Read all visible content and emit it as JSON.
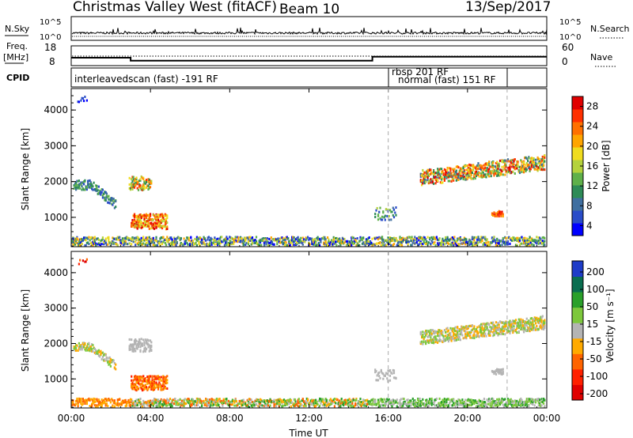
{
  "header": {
    "title": "Christmas Valley West (fitACF)",
    "beam": "Beam 10",
    "date": "13/Sep/2017"
  },
  "labels": {
    "nsky": "N.Sky",
    "nsearch": "N.Search",
    "freq": "Freq.",
    "mhz": "[MHz]",
    "nave": "Nave",
    "cpid": "CPID",
    "ylabel": "Slant Range [km]",
    "xlabel": "Time UT",
    "power_cbar": "Power [dB]",
    "velocity_cbar": "Velocity [m s⁻¹]"
  },
  "colors": {
    "power": [
      "#0000ff",
      "#2a4cc8",
      "#3f6fa0",
      "#2e8b57",
      "#5fb04a",
      "#b4d23c",
      "#f0dc1e",
      "#ffa500",
      "#ff7000",
      "#ff3000",
      "#e00000"
    ],
    "velocity": [
      "#1e3cc8",
      "#0a6e50",
      "#2aa02a",
      "#7dc83c",
      "#b4b4b4",
      "#ffaa00",
      "#ff6400",
      "#ff2000",
      "#e00000"
    ]
  },
  "chart_data": [
    {
      "type": "line",
      "name": "noise",
      "y_left_labels": [
        "10^5",
        "10^0"
      ],
      "y_right_labels": [
        "10^5",
        "10^0"
      ]
    },
    {
      "type": "line",
      "name": "frequency-nave",
      "y_left_ticks": [
        "18",
        "8"
      ],
      "y_right_ticks": [
        "60",
        "0"
      ],
      "x_hours": [
        0,
        3,
        3,
        15.2,
        15.2,
        24
      ],
      "freq_mhz": [
        12,
        12,
        10.5,
        10.5,
        12.5,
        12.5
      ]
    },
    {
      "type": "table",
      "name": "cpid",
      "segments": [
        {
          "start": 0,
          "end": 16,
          "text": "interleavedscan (fast) -191 RF"
        },
        {
          "start": 16,
          "end": 16,
          "text": "rbsp 201 RF"
        },
        {
          "start": 16,
          "end": 24,
          "text": "normal (fast) 151 RF"
        }
      ],
      "boundaries": [
        16,
        22
      ]
    },
    {
      "type": "heatmap",
      "name": "power",
      "x_ticks": [
        "00:00",
        "04:00",
        "08:00",
        "12:00",
        "16:00",
        "20:00",
        "00:00"
      ],
      "y_ticks": [
        1000,
        2000,
        3000,
        4000
      ],
      "ylim": [
        180,
        4600
      ],
      "xlim": [
        0,
        24
      ],
      "colorbar_ticks": [
        4,
        8,
        12,
        16,
        20,
        24,
        28
      ]
    },
    {
      "type": "heatmap",
      "name": "velocity",
      "x_ticks": [
        "00:00",
        "04:00",
        "08:00",
        "12:00",
        "16:00",
        "20:00",
        "00:00"
      ],
      "y_ticks": [
        1000,
        2000,
        3000,
        4000
      ],
      "ylim": [
        180,
        4600
      ],
      "xlim": [
        0,
        24
      ],
      "colorbar_ticks": [
        "200",
        "100",
        "50",
        "15",
        "-15",
        "-50",
        "-100",
        "-200"
      ]
    }
  ]
}
